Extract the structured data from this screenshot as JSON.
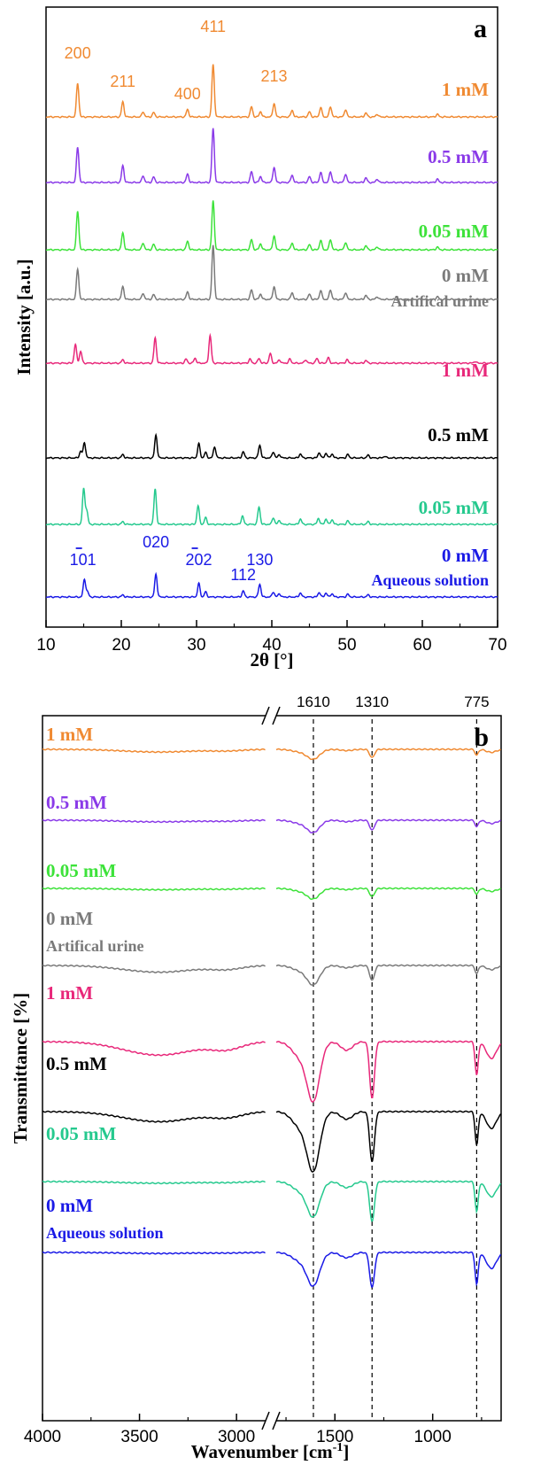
{
  "chart_data": [
    {
      "panel_label": "a",
      "type": "line",
      "xlabel": "2θ [°]",
      "ylabel": "Intensity [a.u.]",
      "xlim": [
        10,
        70
      ],
      "xticks": [
        10,
        20,
        30,
        40,
        50,
        60,
        70
      ],
      "peak_labels": [
        {
          "text": "200",
          "x": 14.2,
          "color": "#f08a32"
        },
        {
          "text": "211",
          "x": 20.2,
          "color": "#f08a32"
        },
        {
          "text": "400",
          "x": 28.8,
          "color": "#f08a32"
        },
        {
          "text": "411",
          "x": 32.2,
          "color": "#f08a32"
        },
        {
          "text": "213",
          "x": 40.3,
          "color": "#f08a32"
        },
        {
          "text": "101",
          "bar": true,
          "x": 14.9,
          "color": "#1a1ae6"
        },
        {
          "text": "020",
          "x": 24.6,
          "color": "#1a1ae6"
        },
        {
          "text": "202",
          "bar": true,
          "x": 30.3,
          "color": "#1a1ae6"
        },
        {
          "text": "112",
          "x": 36.2,
          "color": "#1a1ae6"
        },
        {
          "text": "130",
          "x": 38.4,
          "color": "#1a1ae6"
        }
      ],
      "series": [
        {
          "name": "1 mM",
          "color": "#f08a32",
          "pattern": "B",
          "scale": 1.0,
          "peaks": [
            [
              14.2,
              1.0
            ],
            [
              20.2,
              0.45
            ],
            [
              22.9,
              0.15
            ],
            [
              24.3,
              0.13
            ],
            [
              28.8,
              0.22
            ],
            [
              32.2,
              1.55
            ],
            [
              37.3,
              0.3
            ],
            [
              38.5,
              0.16
            ],
            [
              40.3,
              0.4
            ],
            [
              42.7,
              0.2
            ],
            [
              45,
              0.15
            ],
            [
              46.5,
              0.28
            ],
            [
              47.8,
              0.3
            ],
            [
              49.8,
              0.22
            ],
            [
              52.5,
              0.12
            ],
            [
              54,
              0.08
            ],
            [
              62,
              0.08
            ]
          ]
        },
        {
          "name": "0.5 mM",
          "color": "#8a3ae8",
          "pattern": "B",
          "scale": 1.0,
          "peaks": [
            [
              14.2,
              1.05
            ],
            [
              20.2,
              0.5
            ],
            [
              22.9,
              0.2
            ],
            [
              24.3,
              0.16
            ],
            [
              28.8,
              0.25
            ],
            [
              32.2,
              1.6
            ],
            [
              37.3,
              0.32
            ],
            [
              38.5,
              0.18
            ],
            [
              40.3,
              0.45
            ],
            [
              42.7,
              0.22
            ],
            [
              45,
              0.17
            ],
            [
              46.5,
              0.3
            ],
            [
              47.8,
              0.32
            ],
            [
              49.8,
              0.25
            ],
            [
              52.5,
              0.14
            ],
            [
              54,
              0.1
            ],
            [
              62,
              0.1
            ]
          ]
        },
        {
          "name": "0.05 mM",
          "color": "#3de23a",
          "pattern": "B",
          "scale": 1.0,
          "peaks": [
            [
              14.2,
              1.15
            ],
            [
              20.2,
              0.5
            ],
            [
              22.9,
              0.2
            ],
            [
              24.3,
              0.16
            ],
            [
              28.8,
              0.25
            ],
            [
              32.2,
              1.45
            ],
            [
              37.3,
              0.3
            ],
            [
              38.5,
              0.18
            ],
            [
              40.3,
              0.42
            ],
            [
              42.7,
              0.2
            ],
            [
              45,
              0.15
            ],
            [
              46.5,
              0.28
            ],
            [
              47.8,
              0.3
            ],
            [
              49.8,
              0.22
            ],
            [
              52.5,
              0.12
            ],
            [
              54,
              0.09
            ],
            [
              62,
              0.08
            ]
          ]
        },
        {
          "name": "0 mM",
          "sublabel": "Artifical urine",
          "color": "#7a7a7a",
          "pattern": "B",
          "scale": 1.0,
          "peaks": [
            [
              14.2,
              0.9
            ],
            [
              20.2,
              0.38
            ],
            [
              22.9,
              0.18
            ],
            [
              24.3,
              0.14
            ],
            [
              28.8,
              0.22
            ],
            [
              32.2,
              1.6
            ],
            [
              37.3,
              0.28
            ],
            [
              38.5,
              0.16
            ],
            [
              40.3,
              0.38
            ],
            [
              42.7,
              0.2
            ],
            [
              45,
              0.15
            ],
            [
              46.5,
              0.26
            ],
            [
              47.8,
              0.28
            ],
            [
              49.8,
              0.2
            ],
            [
              52.5,
              0.12
            ],
            [
              54,
              0.08
            ],
            [
              62,
              0.08
            ]
          ]
        },
        {
          "name": "1 mM",
          "color": "#e8287a",
          "pattern": "C",
          "scale": 1.0,
          "peaks": [
            [
              13.9,
              0.55
            ],
            [
              14.6,
              0.35
            ],
            [
              20.2,
              0.1
            ],
            [
              24.5,
              0.75
            ],
            [
              28.6,
              0.12
            ],
            [
              29.8,
              0.15
            ],
            [
              31.8,
              0.82
            ],
            [
              37.1,
              0.12
            ],
            [
              38.3,
              0.14
            ],
            [
              39.8,
              0.28
            ],
            [
              41,
              0.1
            ],
            [
              42.4,
              0.12
            ],
            [
              44.5,
              0.1
            ],
            [
              46,
              0.14
            ],
            [
              47.5,
              0.16
            ],
            [
              50,
              0.1
            ],
            [
              52.5,
              0.08
            ],
            [
              67,
              0.05
            ]
          ]
        },
        {
          "name": "0.5 mM",
          "color": "#000000",
          "pattern": "A",
          "scale": 1.0,
          "peaks": [
            [
              14.6,
              0.2
            ],
            [
              15.1,
              0.45
            ],
            [
              20.2,
              0.1
            ],
            [
              24.6,
              0.68
            ],
            [
              30.3,
              0.42
            ],
            [
              31.2,
              0.16
            ],
            [
              32.4,
              0.33
            ],
            [
              36.2,
              0.18
            ],
            [
              38.4,
              0.38
            ],
            [
              40.2,
              0.18
            ],
            [
              41,
              0.1
            ],
            [
              43.8,
              0.12
            ],
            [
              46.3,
              0.16
            ],
            [
              47.2,
              0.14
            ],
            [
              48,
              0.12
            ],
            [
              50.1,
              0.1
            ],
            [
              52.8,
              0.08
            ],
            [
              55,
              0.05
            ]
          ]
        },
        {
          "name": "0.05 mM",
          "color": "#25c98e",
          "pattern": "A",
          "scale": 1.0,
          "peaks": [
            [
              15.0,
              1.05
            ],
            [
              15.4,
              0.4
            ],
            [
              20.2,
              0.08
            ],
            [
              24.5,
              1.05
            ],
            [
              30.2,
              0.55
            ],
            [
              31.2,
              0.2
            ],
            [
              36.1,
              0.25
            ],
            [
              38.3,
              0.52
            ],
            [
              40.2,
              0.2
            ],
            [
              41,
              0.12
            ],
            [
              43.8,
              0.16
            ],
            [
              46.2,
              0.18
            ],
            [
              47.2,
              0.16
            ],
            [
              48,
              0.14
            ],
            [
              50.1,
              0.1
            ],
            [
              52.8,
              0.08
            ]
          ]
        },
        {
          "name": "0 mM",
          "sublabel": "Aqueous solution",
          "color": "#1a1ae6",
          "pattern": "A",
          "scale": 1.0,
          "peaks": [
            [
              15.1,
              0.52
            ],
            [
              15.5,
              0.15
            ],
            [
              20.2,
              0.06
            ],
            [
              24.6,
              0.68
            ],
            [
              30.3,
              0.4
            ],
            [
              31.2,
              0.15
            ],
            [
              36.2,
              0.18
            ],
            [
              38.4,
              0.38
            ],
            [
              40.2,
              0.15
            ],
            [
              41,
              0.1
            ],
            [
              43.8,
              0.12
            ],
            [
              46.3,
              0.14
            ],
            [
              47.2,
              0.12
            ],
            [
              48,
              0.1
            ],
            [
              50.1,
              0.08
            ],
            [
              52.8,
              0.06
            ]
          ]
        }
      ]
    },
    {
      "panel_label": "b",
      "type": "line",
      "xlabel": "Wavenumber [cm",
      "xlabel_sup": "-1",
      "xlabel_end": "]",
      "ylabel": "Transmittance [%]",
      "xlim": [
        4000,
        650
      ],
      "axis_break": [
        2850,
        1800
      ],
      "xticks": [
        4000,
        3500,
        3000,
        1500,
        1000
      ],
      "reference_lines": [
        {
          "x": 1610,
          "label": "1610"
        },
        {
          "x": 1310,
          "label": "1310"
        },
        {
          "x": 775,
          "label": "775"
        }
      ],
      "series": [
        {
          "name": "1 mM",
          "color": "#f08a32",
          "band1610": 0.28,
          "band1310": 0.25,
          "band775": 0.18,
          "broad": 0.08
        },
        {
          "name": "0.5 mM",
          "color": "#8a3ae8",
          "band1610": 0.35,
          "band1310": 0.3,
          "band775": 0.2,
          "broad": 0.05
        },
        {
          "name": "0.05 mM",
          "color": "#3de23a",
          "band1610": 0.3,
          "band1310": 0.25,
          "band775": 0.18,
          "broad": 0.04
        },
        {
          "name": "0 mM",
          "sublabel": "Artifical urine",
          "color": "#7a7a7a",
          "band1610": 0.55,
          "band1310": 0.45,
          "band775": 0.25,
          "broad": 0.2
        },
        {
          "name": "1 mM",
          "color": "#e8287a",
          "band1610": 1.7,
          "band1310": 1.7,
          "band775": 1.0,
          "broad": 0.4
        },
        {
          "name": "0.5 mM",
          "color": "#000000",
          "band1610": 1.7,
          "band1310": 1.5,
          "band775": 1.0,
          "broad": 0.3
        },
        {
          "name": "0.05 mM",
          "color": "#25c98e",
          "band1610": 1.0,
          "band1310": 1.2,
          "band775": 0.9,
          "broad": 0.05
        },
        {
          "name": "0 mM",
          "sublabel": "Aqueous solution",
          "color": "#1a1ae6",
          "band1610": 0.95,
          "band1310": 1.05,
          "band775": 0.95,
          "broad": 0.03
        }
      ]
    }
  ]
}
